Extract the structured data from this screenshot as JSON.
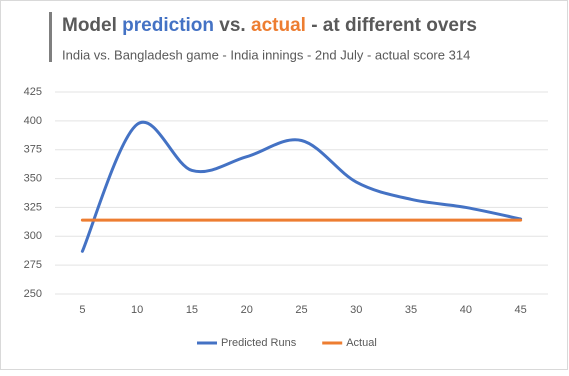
{
  "chart_data": {
    "type": "line",
    "title": [
      {
        "text": "Model ",
        "color": "#595959"
      },
      {
        "text": "prediction",
        "color": "#4472c4"
      },
      {
        "text": " vs. ",
        "color": "#595959"
      },
      {
        "text": "actual",
        "color": "#ed7d31"
      },
      {
        "text": " - at different overs",
        "color": "#595959"
      }
    ],
    "subtitle": "India vs. Bangladesh game - India innings - 2nd July - actual score 314",
    "categories": [
      5,
      10,
      15,
      20,
      25,
      30,
      35,
      40,
      45
    ],
    "series": [
      {
        "name": "Predicted Runs",
        "color": "#4472c4",
        "values": [
          287,
          397,
          357,
          369,
          383,
          347,
          332,
          325,
          315
        ],
        "smooth": true
      },
      {
        "name": "Actual",
        "color": "#ed7d31",
        "values": [
          314,
          314,
          314,
          314,
          314,
          314,
          314,
          314,
          314
        ],
        "smooth": false
      }
    ],
    "ylim": [
      250,
      425
    ],
    "yticks": [
      250,
      275,
      300,
      325,
      350,
      375,
      400,
      425
    ],
    "grid": true,
    "legend": "bottom"
  }
}
